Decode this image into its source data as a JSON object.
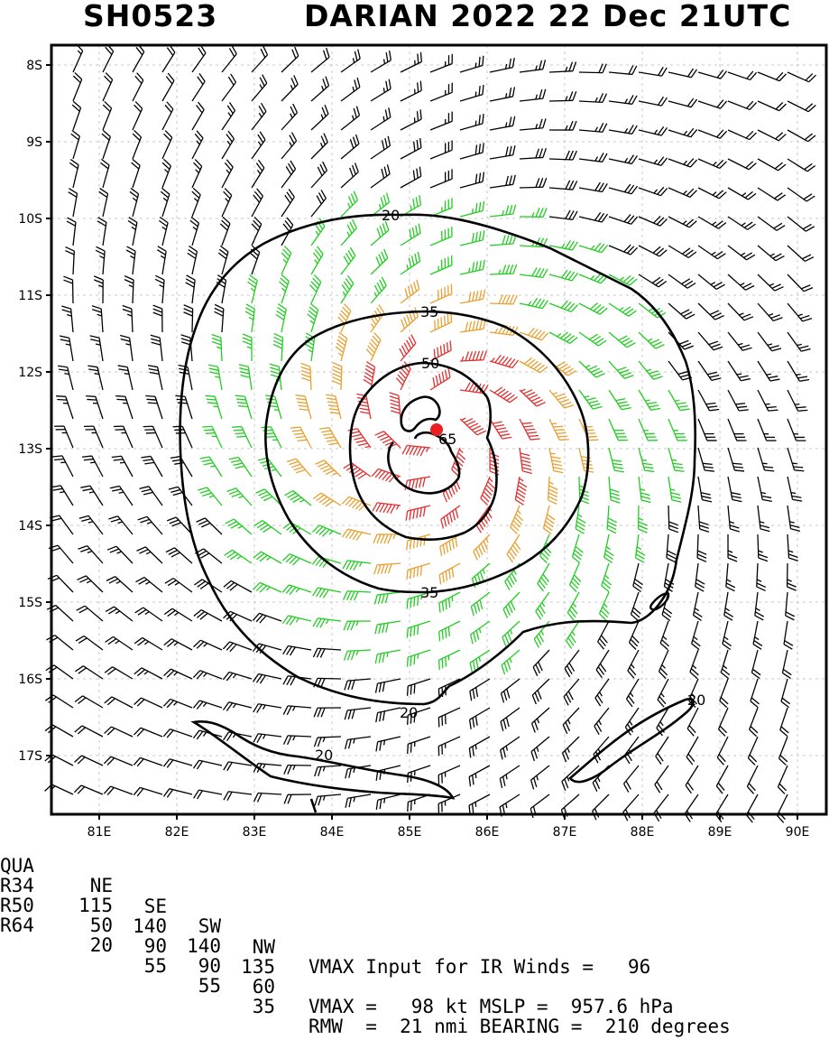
{
  "title": {
    "storm_id": "SH0523",
    "name_time": "DARIAN 2022 22 Dec 21UTC"
  },
  "map": {
    "lon_range": [
      80.45,
      90.45
    ],
    "lat_range": [
      -17.78,
      -7.6
    ],
    "lon_ticks": [
      "81E",
      "82E",
      "83E",
      "84E",
      "85E",
      "86E",
      "87E",
      "88E",
      "89E",
      "90E"
    ],
    "lon_tick_values": [
      81,
      82,
      83,
      84,
      85,
      86,
      87,
      88,
      89,
      90
    ],
    "lat_ticks": [
      "8S",
      "9S",
      "10S",
      "11S",
      "12S",
      "13S",
      "14S",
      "15S",
      "16S",
      "17S"
    ],
    "lat_tick_values": [
      -8,
      -9,
      -10,
      -11,
      -12,
      -13,
      -14,
      -15,
      -16,
      -17
    ],
    "center": {
      "lon": 85.38,
      "lat": -12.75
    },
    "contour_labels": [
      "20",
      "35",
      "50",
      "65",
      "20",
      "20",
      "35"
    ],
    "barb_colors": {
      "lt35": "#000000",
      "35to50": "#22cc22",
      "50to65": "#e8a030",
      "ge65": "#e03030"
    },
    "center_color": "#e82020"
  },
  "footer": {
    "header": {
      "label": "QUA",
      "ne": "NE",
      "se": "SE",
      "sw": "SW",
      "nw": "NW",
      "text": "VMAX Input for IR Winds =   96"
    },
    "r34": {
      "label": "R34",
      "ne": "115",
      "se": "140",
      "sw": "140",
      "nw": "135",
      "text": ""
    },
    "r50": {
      "label": "R50",
      "ne": "50",
      "se": "90",
      "sw": "90",
      "nw": "60",
      "text": "VMAX =   98 kt MSLP =  957.6 hPa"
    },
    "r64": {
      "label": "R64",
      "ne": "20",
      "se": "55",
      "sw": "55",
      "nw": "35",
      "text": "RMW  =  21 nmi BEARING =  210 degrees"
    }
  }
}
